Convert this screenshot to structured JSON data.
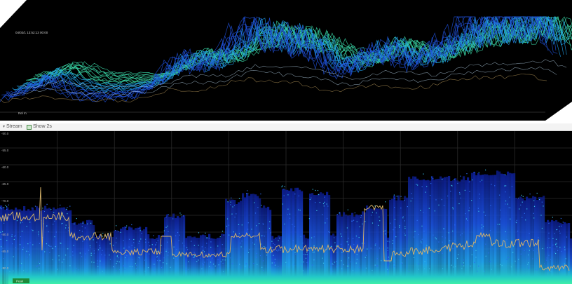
{
  "waterfall": {
    "timestamp": "04/02/1 13:52:13 00:00",
    "corner_label": "Rel m"
  },
  "toolbar": {
    "opt1_label": "Stream",
    "opt2_label": "Show 2s"
  },
  "spectrum": {
    "y_tick_labels": [
      "-50.0",
      "-55.0",
      "-60.0",
      "-65.0",
      "-70.0",
      "-75.0",
      "-80.0",
      "-85.0",
      "-90.0"
    ],
    "marker_label": "Peak"
  },
  "colors": {
    "background": "#000000",
    "trace_low": "#1a3fd6",
    "trace_mid": "#1fa8e8",
    "trace_high": "#34e0a8",
    "max_hold": "#d8b46a",
    "marker": "#1e8a3a"
  }
}
